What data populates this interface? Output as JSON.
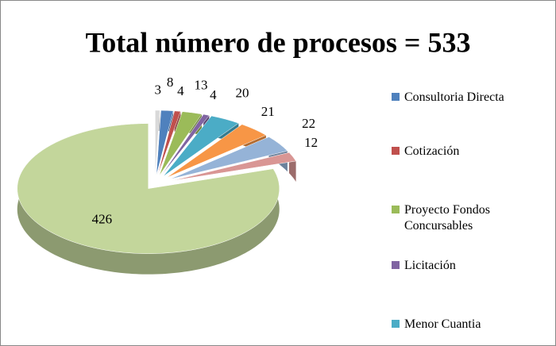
{
  "chart_data": {
    "type": "pie",
    "title": "Total número de procesos = 533",
    "categories": [
      null,
      "Consultoria Directa",
      "Cotización",
      "Proyecto Fondos Concursables",
      "Licitación",
      "Menor Cuantia",
      null,
      null,
      null,
      null
    ],
    "values": [
      3,
      8,
      4,
      13,
      4,
      20,
      21,
      22,
      12,
      426
    ],
    "colors": [
      "#d9d9d9",
      "#4f81bd",
      "#c0504d",
      "#9bbb59",
      "#8064a2",
      "#4bacc6",
      "#f79646",
      "#95b3d7",
      "#d99694",
      "#c3d69b"
    ],
    "legend": "right"
  }
}
